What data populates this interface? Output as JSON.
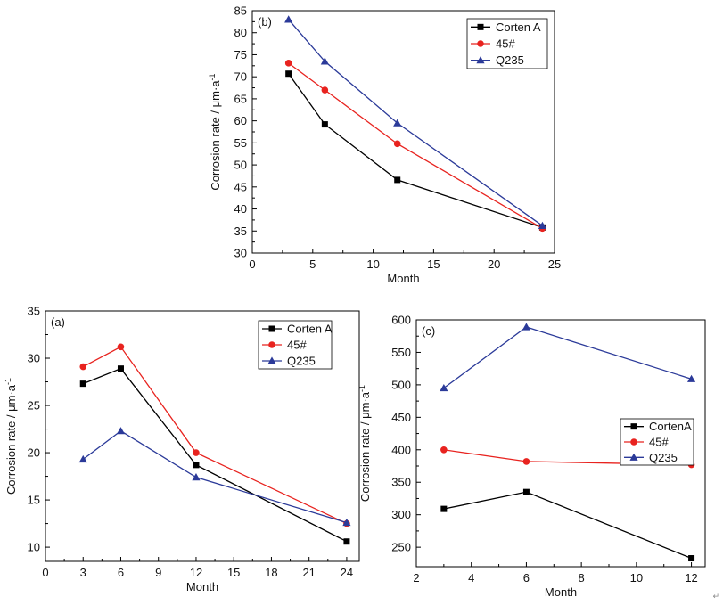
{
  "colors": {
    "black": "#000000",
    "red": "#e8231f",
    "blue": "#2b3a99"
  },
  "corner_mark": "↵",
  "chart_data": [
    {
      "type": "line",
      "panel_label": "(b)",
      "xlabel": "Month",
      "ylabel": "Corrosion rate / μm·a",
      "ylabel_sup": "-1",
      "xlim": [
        0,
        25
      ],
      "ylim": [
        30,
        85
      ],
      "xticks": [
        0,
        5,
        10,
        15,
        20,
        25
      ],
      "yticks": [
        30,
        35,
        40,
        45,
        50,
        55,
        60,
        65,
        70,
        75,
        80,
        85
      ],
      "grid": false,
      "legend_position": "top-right",
      "x": [
        3,
        6,
        12,
        24
      ],
      "series": [
        {
          "name": "Corten A",
          "color": "#000000",
          "marker": "square",
          "values": [
            70.7,
            59.2,
            46.6,
            35.8
          ]
        },
        {
          "name": "45#",
          "color": "#e8231f",
          "marker": "circle",
          "values": [
            73.1,
            67.0,
            54.8,
            35.6
          ]
        },
        {
          "name": "Q235",
          "color": "#2b3a99",
          "marker": "triangle",
          "values": [
            83.0,
            73.5,
            59.5,
            36.2
          ]
        }
      ]
    },
    {
      "type": "line",
      "panel_label": "(a)",
      "xlabel": "Month",
      "ylabel": "Corrosion rate / μm·a",
      "ylabel_sup": "-1",
      "xlim": [
        0,
        25
      ],
      "ylim": [
        8.5,
        35
      ],
      "xticks": [
        0,
        3,
        6,
        9,
        12,
        15,
        18,
        21,
        24
      ],
      "yticks": [
        10,
        15,
        20,
        25,
        30,
        35
      ],
      "grid": false,
      "legend_position": "top-right",
      "x": [
        3,
        6,
        12,
        24
      ],
      "series": [
        {
          "name": "Corten A",
          "color": "#000000",
          "marker": "square",
          "values": [
            27.3,
            28.9,
            18.7,
            10.6
          ]
        },
        {
          "name": "45#",
          "color": "#e8231f",
          "marker": "circle",
          "values": [
            29.1,
            31.2,
            20.0,
            12.5
          ]
        },
        {
          "name": "Q235",
          "color": "#2b3a99",
          "marker": "triangle",
          "values": [
            19.3,
            22.3,
            17.4,
            12.6
          ]
        }
      ]
    },
    {
      "type": "line",
      "panel_label": "(c)",
      "xlabel": "Month",
      "ylabel": "Corrosion rate / μm·a",
      "ylabel_sup": "-1",
      "xlim": [
        2,
        12.5
      ],
      "ylim": [
        220,
        600
      ],
      "xticks": [
        2,
        4,
        6,
        8,
        10,
        12
      ],
      "yticks": [
        250,
        300,
        350,
        400,
        450,
        500,
        550,
        600
      ],
      "grid": false,
      "legend_position": "right",
      "x": [
        3,
        6,
        12
      ],
      "series": [
        {
          "name": "CortenA",
          "color": "#000000",
          "marker": "square",
          "values": [
            309,
            335,
            233
          ]
        },
        {
          "name": "45#",
          "color": "#e8231f",
          "marker": "circle",
          "values": [
            400,
            382,
            377
          ]
        },
        {
          "name": "Q235",
          "color": "#2b3a99",
          "marker": "triangle",
          "values": [
            495,
            589,
            509
          ]
        }
      ]
    }
  ]
}
